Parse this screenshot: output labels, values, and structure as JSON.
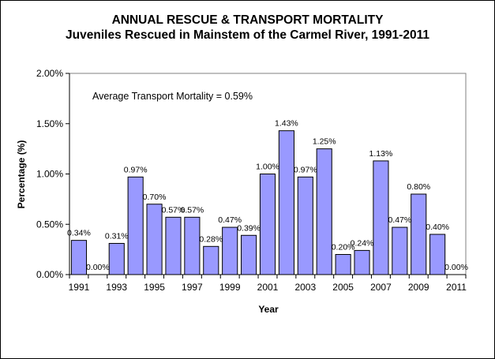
{
  "chart_data": {
    "type": "bar",
    "title": "ANNUAL RESCUE & TRANSPORT MORTALITY",
    "subtitle": "Juveniles Rescued in Mainstem of the Carmel River, 1991-2011",
    "xlabel": "Year",
    "ylabel": "Percentage (%)",
    "annotation": "Average Transport Mortality = 0.59%",
    "categories": [
      "1991",
      "1992",
      "1993",
      "1994",
      "1995",
      "1996",
      "1997",
      "1998",
      "1999",
      "2000",
      "2001",
      "2002",
      "2003",
      "2004",
      "2005",
      "2006",
      "2007",
      "2008",
      "2009",
      "2010",
      "2011"
    ],
    "x_tick_labels": [
      "1991",
      "1993",
      "1995",
      "1997",
      "1999",
      "2001",
      "2003",
      "2005",
      "2007",
      "2009",
      "2011"
    ],
    "values": [
      0.34,
      0.0,
      0.31,
      0.97,
      0.7,
      0.57,
      0.57,
      0.28,
      0.47,
      0.39,
      1.0,
      1.43,
      0.97,
      1.25,
      0.2,
      0.24,
      1.13,
      0.47,
      0.8,
      0.4,
      0.0
    ],
    "data_labels": [
      "0.34%",
      "0.00%",
      "0.31%",
      "0.97%",
      "0.70%",
      "0.57%",
      "0.57%",
      "0.28%",
      "0.47%",
      "0.39%",
      "1.00%",
      "1.43%",
      "0.97%",
      "1.25%",
      "0.20%",
      "0.24%",
      "1.13%",
      "0.47%",
      "0.80%",
      "0.40%",
      "0.00%"
    ],
    "y_tick_labels": [
      "0.00%",
      "0.50%",
      "1.00%",
      "1.50%",
      "2.00%"
    ],
    "y_ticks": [
      0,
      0.5,
      1.0,
      1.5,
      2.0
    ],
    "ylim": [
      0,
      2.0
    ],
    "grid": false,
    "legend": "none",
    "bar_color": "#9999ff",
    "bar_edge_color": "#000000"
  }
}
